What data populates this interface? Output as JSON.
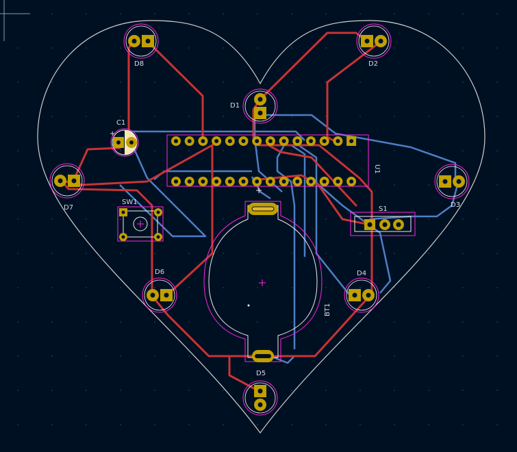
{
  "app": "PCB Editor",
  "colors": {
    "background": "#001023",
    "board_outline": "#d0d2cd",
    "copper_front": "#c83434",
    "copper_back": "#4d7fc4",
    "pad": "#c2a000",
    "pad_hole": "#e3b72f",
    "courtyard": "#ff26e2",
    "fab": "#f2edf2",
    "silk": "#f2edf2"
  },
  "components": {
    "d8": "D8",
    "d2": "D2",
    "d1": "D1",
    "c1": "C1",
    "u1": "U1",
    "d7": "D7",
    "d3": "D3",
    "sw1": "SW1",
    "s1": "S1",
    "d6": "D6",
    "d4": "D4",
    "bt1": "BT1",
    "d5": "D5"
  }
}
